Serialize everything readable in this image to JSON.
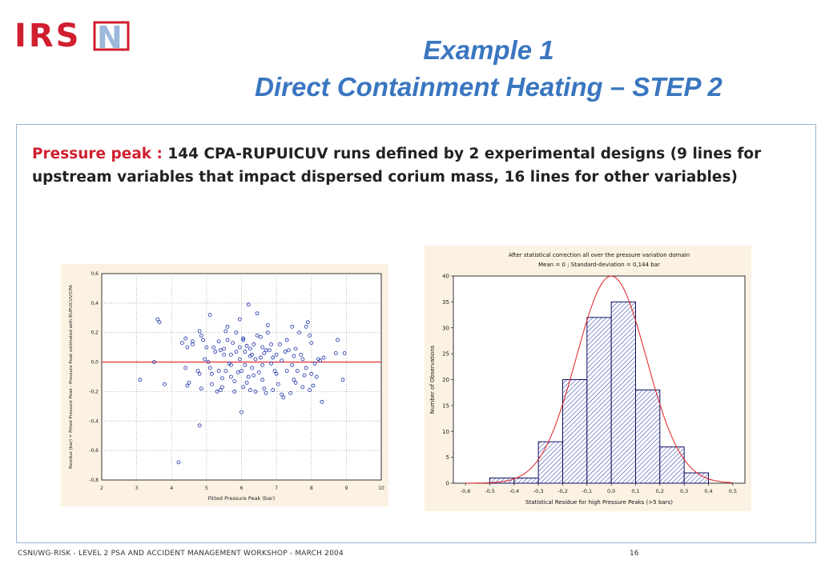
{
  "header": {
    "logo_text": "IRSN",
    "title_line1": "Example 1",
    "title_line2": "Direct Containment Heating – STEP 2"
  },
  "intro": {
    "highlight": "Pressure peak :",
    "text": " 144 CPA-RUPUICUV runs defined by 2 experimental designs (9 lines for upstream variables that impact dispersed corium mass, 16 lines for other variables)"
  },
  "footer": {
    "left": "CSNI/WG-RISK - LEVEL 2 PSA AND ACCIDENT MANAGEMENT WORKSHOP - MARCH 2004",
    "page": "16"
  },
  "colors": {
    "accent_title": "#3a76c0",
    "highlight_red": "#d01f2f",
    "marker_blue": "#1b2fa8",
    "fit_red": "#e02020",
    "chart_bg": "#fbf2e3"
  },
  "chart_data": [
    {
      "type": "scatter",
      "xlabel": "Fitted Pressure Peak (bar)",
      "ylabel": "Residue (bar) = Fitted Pressure Peak - Pressure Peak estimated with RUPUICUV/CPA",
      "xlim": [
        2,
        10
      ],
      "ylim": [
        -0.8,
        0.6
      ],
      "xticks": [
        "2",
        "3",
        "4",
        "5",
        "6",
        "7",
        "8",
        "9",
        "10"
      ],
      "yticks": [
        "0,6",
        "0,4",
        "0,2",
        "0,0",
        "-0,2",
        "-0,4",
        "-0,6",
        "-0,8"
      ],
      "grid": true,
      "reference_line_y": 0,
      "points": [
        [
          3.1,
          -0.12
        ],
        [
          3.6,
          0.29
        ],
        [
          3.65,
          0.27
        ],
        [
          3.5,
          0.0
        ],
        [
          3.8,
          -0.15
        ],
        [
          4.2,
          -0.68
        ],
        [
          4.3,
          0.13
        ],
        [
          4.4,
          0.16
        ],
        [
          4.45,
          0.1
        ],
        [
          4.4,
          -0.04
        ],
        [
          4.5,
          -0.14
        ],
        [
          4.45,
          -0.16
        ],
        [
          4.6,
          0.12
        ],
        [
          4.8,
          -0.43
        ],
        [
          4.8,
          0.21
        ],
        [
          4.85,
          0.18
        ],
        [
          4.9,
          0.15
        ],
        [
          4.95,
          0.02
        ],
        [
          4.8,
          -0.08
        ],
        [
          5.0,
          0.1
        ],
        [
          5.1,
          0.32
        ],
        [
          5.1,
          -0.04
        ],
        [
          5.15,
          -0.08
        ],
        [
          5.2,
          0.1
        ],
        [
          5.3,
          -0.2
        ],
        [
          5.35,
          0.14
        ],
        [
          5.4,
          0.08
        ],
        [
          5.4,
          -0.19
        ],
        [
          5.45,
          -0.17
        ],
        [
          5.5,
          0.09
        ],
        [
          5.55,
          -0.06
        ],
        [
          5.6,
          0.24
        ],
        [
          5.6,
          0.15
        ],
        [
          5.65,
          -0.01
        ],
        [
          5.7,
          0.05
        ],
        [
          5.7,
          -0.1
        ],
        [
          5.75,
          0.13
        ],
        [
          5.8,
          -0.13
        ],
        [
          5.8,
          -0.2
        ],
        [
          5.85,
          0.2
        ],
        [
          5.9,
          -0.07
        ],
        [
          5.95,
          0.1
        ],
        [
          5.95,
          0.02
        ],
        [
          6.0,
          -0.34
        ],
        [
          6.0,
          -0.06
        ],
        [
          6.05,
          0.16
        ],
        [
          6.05,
          0.15
        ],
        [
          6.1,
          0.07
        ],
        [
          6.1,
          -0.02
        ],
        [
          6.15,
          0.11
        ],
        [
          6.2,
          0.39
        ],
        [
          6.2,
          -0.1
        ],
        [
          6.25,
          0.09
        ],
        [
          6.25,
          -0.19
        ],
        [
          6.3,
          0.05
        ],
        [
          6.3,
          -0.04
        ],
        [
          6.35,
          0.12
        ],
        [
          6.4,
          0.02
        ],
        [
          6.4,
          -0.2
        ],
        [
          6.45,
          0.18
        ],
        [
          6.5,
          -0.07
        ],
        [
          6.55,
          0.03
        ],
        [
          6.6,
          0.1
        ],
        [
          6.6,
          -0.02
        ],
        [
          6.65,
          -0.18
        ],
        [
          6.7,
          0.08
        ],
        [
          6.75,
          0.25
        ],
        [
          6.75,
          0.2
        ],
        [
          6.8,
          0.08
        ],
        [
          6.85,
          -0.01
        ],
        [
          6.9,
          -0.19
        ],
        [
          7.0,
          0.05
        ],
        [
          7.0,
          -0.08
        ],
        [
          7.1,
          0.12
        ],
        [
          7.15,
          0.01
        ],
        [
          7.2,
          -0.24
        ],
        [
          7.25,
          0.07
        ],
        [
          7.3,
          -0.06
        ],
        [
          7.35,
          0.08
        ],
        [
          7.4,
          -0.21
        ],
        [
          7.45,
          0.24
        ],
        [
          7.5,
          0.04
        ],
        [
          7.5,
          -0.12
        ],
        [
          7.55,
          0.09
        ],
        [
          7.6,
          -0.06
        ],
        [
          7.65,
          0.2
        ],
        [
          7.7,
          0.05
        ],
        [
          7.75,
          -0.17
        ],
        [
          7.8,
          -0.09
        ],
        [
          7.85,
          0.24
        ],
        [
          7.9,
          0.27
        ],
        [
          7.95,
          0.18
        ],
        [
          8.0,
          0.13
        ],
        [
          8.0,
          -0.08
        ],
        [
          8.05,
          -0.16
        ],
        [
          8.1,
          -0.01
        ],
        [
          8.2,
          0.02
        ],
        [
          8.25,
          0.01
        ],
        [
          8.3,
          -0.27
        ],
        [
          8.35,
          0.03
        ],
        [
          8.7,
          0.06
        ],
        [
          8.75,
          0.15
        ],
        [
          8.9,
          -0.12
        ],
        [
          8.95,
          0.06
        ],
        [
          4.85,
          -0.18
        ],
        [
          5.25,
          0.07
        ],
        [
          6.45,
          0.33
        ],
        [
          5.05,
          0.0
        ],
        [
          6.15,
          -0.14
        ],
        [
          7.05,
          -0.15
        ],
        [
          5.7,
          -0.02
        ],
        [
          6.9,
          0.03
        ],
        [
          7.75,
          0.02
        ],
        [
          7.3,
          0.15
        ],
        [
          6.95,
          -0.06
        ],
        [
          6.6,
          -0.12
        ],
        [
          5.5,
          0.05
        ],
        [
          4.75,
          -0.06
        ],
        [
          6.55,
          0.17
        ],
        [
          7.15,
          -0.22
        ],
        [
          5.95,
          0.29
        ],
        [
          6.35,
          -0.09
        ],
        [
          5.45,
          -0.11
        ],
        [
          4.6,
          0.14
        ],
        [
          7.85,
          -0.04
        ],
        [
          6.65,
          0.06
        ],
        [
          5.15,
          -0.15
        ],
        [
          6.05,
          -0.17
        ],
        [
          7.55,
          -0.14
        ],
        [
          6.85,
          0.12
        ],
        [
          5.85,
          0.07
        ],
        [
          7.45,
          -0.02
        ],
        [
          6.7,
          -0.21
        ],
        [
          5.35,
          -0.06
        ],
        [
          7.95,
          -0.19
        ],
        [
          6.25,
          0.04
        ],
        [
          8.15,
          -0.1
        ],
        [
          5.55,
          0.21
        ]
      ]
    },
    {
      "type": "bar",
      "title": "After statistical correction all over the pressure variation domain",
      "subtitle": "Mean = 0  ;  Standard-deviation = 0,144 bar",
      "xlabel": "Statistical Residue for high Pressure Peaks (>5 bars)",
      "ylabel": "Number of Observations",
      "bin_edges": [
        -0.6,
        -0.5,
        -0.4,
        -0.3,
        -0.2,
        -0.1,
        0.0,
        0.1,
        0.2,
        0.3,
        0.4,
        0.5
      ],
      "values": [
        0,
        1,
        1,
        8,
        20,
        32,
        35,
        18,
        7,
        2,
        0
      ],
      "xlim": [
        -0.65,
        0.55
      ],
      "ylim": [
        0,
        40
      ],
      "xticks": [
        "-0,6",
        "-0,5",
        "-0,4",
        "-0,3",
        "-0,2",
        "-0,1",
        "0,0",
        "0,1",
        "0,2",
        "0,3",
        "0,4",
        "0,5"
      ],
      "yticks": [
        "0",
        "5",
        "10",
        "15",
        "20",
        "25",
        "30",
        "35",
        "40"
      ],
      "normal_fit": {
        "mean": 0.0,
        "std": 0.144,
        "peak": 40
      }
    }
  ]
}
